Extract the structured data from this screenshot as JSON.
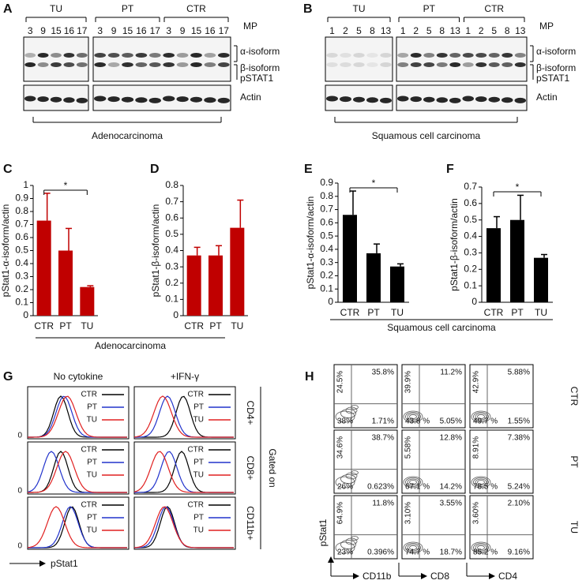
{
  "panel_labels": [
    "A",
    "B",
    "C",
    "D",
    "E",
    "F",
    "G",
    "H"
  ],
  "blots": [
    {
      "groups": [
        {
          "name": "TU",
          "lanes": [
            "3",
            "9",
            "15",
            "16",
            "17"
          ]
        },
        {
          "name": "PT",
          "lanes": [
            "3",
            "9",
            "15",
            "16",
            "17"
          ]
        },
        {
          "name": "CTR",
          "lanes": [
            "3",
            "9",
            "15",
            "16",
            "17"
          ]
        }
      ],
      "lane_title": "MP",
      "bands": [
        "α-isoform",
        "β-isoform",
        "pSTAT1"
      ],
      "loading": "Actin",
      "tissue": "Adenocarcinoma"
    },
    {
      "groups": [
        {
          "name": "TU",
          "lanes": [
            "1",
            "2",
            "5",
            "8",
            "13"
          ]
        },
        {
          "name": "PT",
          "lanes": [
            "1",
            "2",
            "5",
            "8",
            "13"
          ]
        },
        {
          "name": "CTR",
          "lanes": [
            "1",
            "2",
            "5",
            "8",
            "13"
          ]
        }
      ],
      "lane_title": "MP",
      "bands": [
        "α-isoform",
        "β-isoform",
        "pSTAT1"
      ],
      "loading": "Actin",
      "tissue": "Squamous cell carcinoma"
    }
  ],
  "chart_data": [
    {
      "type": "bar",
      "ylabel": "pStat1-α-isoform/actin",
      "categories": [
        "CTR",
        "PT",
        "TU"
      ],
      "values": [
        0.73,
        0.5,
        0.22
      ],
      "errors": [
        0.21,
        0.17,
        0.01
      ],
      "color": "#c00000",
      "ylim": [
        0,
        1
      ],
      "yticks": [
        0,
        0.1,
        0.2,
        0.3,
        0.4,
        0.5,
        0.6,
        0.7,
        0.8,
        0.9,
        1
      ],
      "annotation": "*"
    },
    {
      "type": "bar",
      "ylabel": "pStat1-β-isoform/actin",
      "categories": [
        "CTR",
        "PT",
        "TU"
      ],
      "values": [
        0.37,
        0.37,
        0.54
      ],
      "errors": [
        0.05,
        0.06,
        0.17
      ],
      "color": "#c00000",
      "ylim": [
        0,
        0.8
      ],
      "yticks": [
        0,
        0.1,
        0.2,
        0.3,
        0.4,
        0.5,
        0.6,
        0.7,
        0.8
      ]
    },
    {
      "type": "bar",
      "ylabel": "pStat1-α-isoform/actin",
      "categories": [
        "CTR",
        "PT",
        "TU"
      ],
      "values": [
        0.66,
        0.37,
        0.27
      ],
      "errors": [
        0.18,
        0.07,
        0.02
      ],
      "color": "#000000",
      "ylim": [
        0,
        0.9
      ],
      "yticks": [
        0,
        0.1,
        0.2,
        0.3,
        0.4,
        0.5,
        0.6,
        0.7,
        0.8,
        0.9
      ],
      "annotation": "*"
    },
    {
      "type": "bar",
      "ylabel": "pStat1-β-isoform/actin",
      "categories": [
        "CTR",
        "PT",
        "TU"
      ],
      "values": [
        0.45,
        0.5,
        0.27
      ],
      "errors": [
        0.07,
        0.15,
        0.02
      ],
      "color": "#000000",
      "ylim": [
        0,
        0.7
      ],
      "yticks": [
        0,
        0.1,
        0.2,
        0.3,
        0.4,
        0.5,
        0.6,
        0.7
      ],
      "annotation": "*"
    }
  ],
  "bar_groups": [
    "Adenocarcinoma",
    "Squamous cell carcinoma"
  ],
  "histograms": {
    "columns": [
      "No cytokine",
      "+IFN-γ"
    ],
    "rows": [
      "CD4+",
      "CD8+",
      "CD11b+"
    ],
    "gate": "Gated on",
    "legend": [
      "CTR",
      "PT",
      "TU"
    ],
    "colors": [
      "#000000",
      "#2233cc",
      "#e02020"
    ],
    "axis_zero": "0",
    "xlabel": "pStat1"
  },
  "flow": {
    "rows": [
      "CTR",
      "PT",
      "TU"
    ],
    "columns": [
      "CD11b",
      "CD8",
      "CD4"
    ],
    "ylabel": "pStat1",
    "quadrants": [
      [
        [
          "24.5%",
          "35.8%",
          "38%",
          "1.71%"
        ],
        [
          "39.9%",
          "11.2%",
          "43.8 %",
          "5.05%"
        ],
        [
          "42.9%",
          "5.88%",
          "49.7 %",
          "1.55%"
        ]
      ],
      [
        [
          "34.6%",
          "38.7%",
          "26%",
          "0.623%"
        ],
        [
          "5.58%",
          "12.8%",
          "67.1 %",
          "14.2%"
        ],
        [
          "8.91%",
          "7.38%",
          "78.5 %",
          "5.24%"
        ]
      ],
      [
        [
          "64.9%",
          "11.8%",
          "23%",
          "0.396%"
        ],
        [
          "3.10%",
          "3.55%",
          "74.7 %",
          "18.7%"
        ],
        [
          "3.60%",
          "2.10%",
          "85.2 %",
          "9.16%"
        ]
      ]
    ]
  }
}
